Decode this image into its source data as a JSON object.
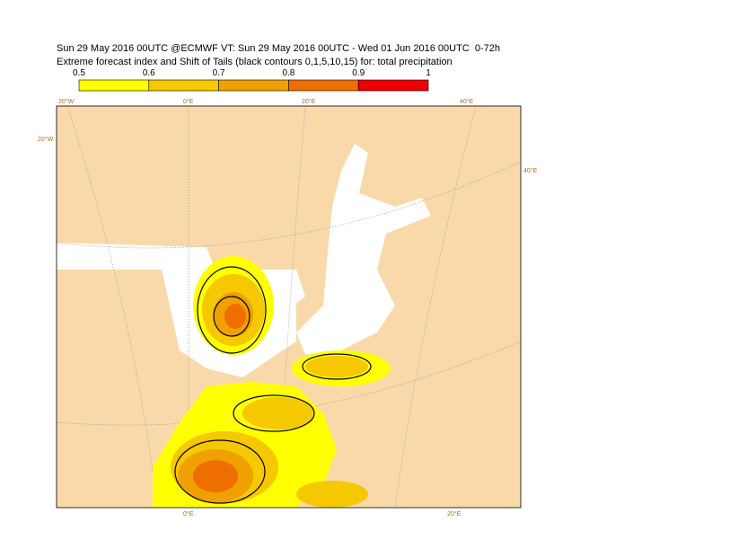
{
  "header": {
    "title": "Sun 29 May 2016 00UTC @ECMWF VT: Sun 29 May 2016 00UTC - Wed 01 Jun 2016 00UTC  0-72h",
    "subtitle": "Extreme forecast index and Shift of Tails (black contours 0,1,5,10,15) for: total precipitation"
  },
  "legend": {
    "ticks": [
      0.5,
      0.6,
      0.7,
      0.8,
      0.9,
      1
    ],
    "colors": [
      "#ffff00",
      "#f5c800",
      "#f0a000",
      "#ee6e00",
      "#ee0000"
    ]
  },
  "map": {
    "labels": [
      "20°W",
      "0°E",
      "20°E",
      "40°E",
      "20°W",
      "40°E",
      "0°E",
      "20°E"
    ]
  }
}
